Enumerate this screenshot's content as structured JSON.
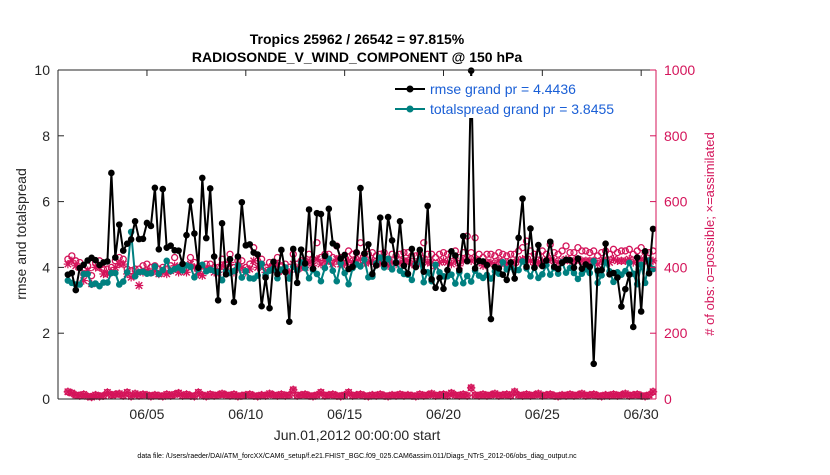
{
  "chart_data": {
    "type": "line",
    "title_line1": "Tropics 25962 / 26542 = 97.815%",
    "title_line2": "RADIOSONDE_V_WIND_COMPONENT @ 150 hPa",
    "xlabel": "Jun.01,2012 00:00:00 start",
    "ylabel_left": "rmse and totalspread",
    "ylabel_right": "# of obs: o=possible; ×=assimilated",
    "footnote": "data file: /Users/raeder/DAI/ATM_forcXX/CAM6_setup/f.e21.FHIST_BGC.f09_025.CAM6assim.011/Diags_NTrS_2012-06/obs_diag_output.nc",
    "xlim": [
      0.5,
      30.75
    ],
    "ylim_left": [
      0,
      10
    ],
    "ylim_right": [
      0,
      1000
    ],
    "x_ticks": [
      {
        "x": 5,
        "label": "06/05"
      },
      {
        "x": 10,
        "label": "06/10"
      },
      {
        "x": 15,
        "label": "06/15"
      },
      {
        "x": 20,
        "label": "06/20"
      },
      {
        "x": 25,
        "label": "06/25"
      },
      {
        "x": 30,
        "label": "06/30"
      }
    ],
    "y_ticks_left": [
      "0",
      "2",
      "4",
      "6",
      "8",
      "10"
    ],
    "y_ticks_right": [
      "0",
      "200",
      "400",
      "600",
      "800",
      "1000"
    ],
    "colors": {
      "rmse": "#000000",
      "spread": "#008080",
      "obs": "#d4145a",
      "axis": "#262626"
    },
    "legend": [
      {
        "label": "rmse grand pr = 4.4436",
        "series": "rmse"
      },
      {
        "label": "totalspread grand pr = 3.8455",
        "series": "spread"
      }
    ],
    "series": [
      {
        "name": "rmse",
        "axis": "left",
        "values": [
          3.78,
          3.83,
          3.31,
          3.98,
          4.08,
          4.21,
          4.29,
          4.22,
          4.07,
          4.15,
          4.18,
          6.87,
          4.3,
          5.3,
          4.51,
          4.72,
          4.85,
          5.4,
          4.86,
          4.87,
          5.35,
          5.26,
          6.42,
          4.55,
          6.38,
          4.6,
          4.66,
          4.52,
          4.51,
          4.11,
          4.98,
          6.02,
          5.03,
          3.99,
          6.72,
          4.89,
          6.4,
          4.33,
          3.0,
          5.34,
          3.79,
          4.25,
          2.95,
          4.33,
          5.98,
          4.67,
          4.7,
          4.45,
          4.39,
          2.82,
          3.69,
          2.76,
          4.17,
          3.8,
          4.53,
          3.86,
          2.35,
          4.56,
          3.53,
          4.54,
          4.12,
          5.76,
          3.96,
          5.65,
          5.62,
          4.35,
          5.78,
          4.73,
          4.65,
          4.27,
          4.38,
          3.95,
          4.02,
          4.45,
          6.41,
          4.42,
          4.7,
          3.8,
          4.06,
          5.51,
          4.1,
          5.53,
          4.82,
          4.14,
          5.4,
          4.05,
          3.81,
          4.56,
          4.01,
          4.53,
          3.87,
          5.87,
          3.64,
          3.38,
          3.68,
          3.35,
          3.92,
          4.49,
          4.36,
          3.92,
          4.95,
          4.19,
          9.98,
          3.97,
          4.2,
          4.18,
          4.07,
          2.43,
          4.01,
          3.97,
          3.78,
          3.62,
          4.15,
          3.66,
          4.9,
          6.09,
          4.02,
          5.18,
          3.99,
          4.68,
          4.04,
          4.21,
          4.78,
          4.02,
          3.95,
          4.14,
          4.23,
          4.22,
          3.99,
          4.27,
          3.96,
          4.09,
          4.02,
          1.07,
          3.9,
          3.92,
          4.72,
          3.79,
          3.83,
          3.69,
          2.81,
          3.34,
          3.78,
          2.19,
          4.3,
          2.66,
          4.49,
          3.82,
          5.17
        ]
      },
      {
        "name": "totalspread",
        "axis": "left",
        "values": [
          3.6,
          3.53,
          3.48,
          3.48,
          3.8,
          3.8,
          3.48,
          3.51,
          3.43,
          3.54,
          3.54,
          3.83,
          3.83,
          3.48,
          3.57,
          3.85,
          5.08,
          3.73,
          3.86,
          3.87,
          3.81,
          3.82,
          4.03,
          3.8,
          3.92,
          4.2,
          3.89,
          3.95,
          4.0,
          3.91,
          4.06,
          4.02,
          3.7,
          3.95,
          4.08,
          3.88,
          3.93,
          3.9,
          3.86,
          3.61,
          3.89,
          3.83,
          3.89,
          4.06,
          3.69,
          3.89,
          3.67,
          3.66,
          3.75,
          4.11,
          3.77,
          3.9,
          3.97,
          3.67,
          3.93,
          4.0,
          3.66,
          4.02,
          3.9,
          4.15,
          3.98,
          3.67,
          3.92,
          3.8,
          3.58,
          3.98,
          4.26,
          3.9,
          3.58,
          4.13,
          3.83,
          3.49,
          3.98,
          4.09,
          4.03,
          4.24,
          3.7,
          3.72,
          4.12,
          4.3,
          4.0,
          4.26,
          3.94,
          4.16,
          3.9,
          3.8,
          3.78,
          3.62,
          4.09,
          4.25,
          3.55,
          3.85,
          3.58,
          4.08,
          3.85,
          3.73,
          3.73,
          3.78,
          3.51,
          3.85,
          3.52,
          3.74,
          3.57,
          3.9,
          3.75,
          3.68,
          3.77,
          3.66,
          3.88,
          3.81,
          4.16,
          3.94,
          4.01,
          3.9,
          3.92,
          4.18,
          3.97,
          3.73,
          3.99,
          3.68,
          3.79,
          4.07,
          3.78,
          3.98,
          3.81,
          4.16,
          3.84,
          3.98,
          3.83,
          3.65,
          3.81,
          3.94,
          3.83,
          4.19,
          3.53,
          3.76,
          4.15,
          3.88,
          3.56,
          3.85,
          3.78,
          3.89,
          4.14,
          3.81,
          3.49,
          4.08,
          3.53,
          4.21,
          3.95
        ]
      },
      {
        "name": "nposs",
        "axis": "right",
        "values": [
          425,
          435,
          420,
          415,
          380,
          405,
          375,
          415,
          420,
          395,
          395,
          400,
          420,
          430,
          425,
          395,
          390,
          395,
          395,
          405,
          410,
          400,
          405,
          395,
          400,
          395,
          405,
          430,
          400,
          405,
          400,
          430,
          415,
          395,
          390,
          410,
          410,
          400,
          400,
          425,
          410,
          440,
          400,
          420,
          420,
          400,
          410,
          460,
          420,
          425,
          400,
          415,
          410,
          430,
          405,
          410,
          400,
          440,
          410,
          420,
          420,
          440,
          425,
          475,
          430,
          440,
          440,
          430,
          465,
          430,
          430,
          450,
          440,
          445,
          475,
          440,
          440,
          445,
          435,
          440,
          445,
          425,
          440,
          435,
          440,
          445,
          445,
          435,
          435,
          440,
          475,
          440,
          440,
          430,
          440,
          445,
          440,
          435,
          450,
          430,
          445,
          495,
          445,
          490,
          440,
          430,
          440,
          440,
          435,
          445,
          440,
          435,
          440,
          440,
          450,
          460,
          480,
          450,
          440,
          440,
          450,
          440,
          470,
          445,
          440,
          450,
          465,
          445,
          445,
          460,
          450,
          450,
          445,
          450,
          435,
          445,
          450,
          440,
          455,
          445,
          450,
          450,
          455,
          440,
          450,
          460,
          445,
          445,
          450
        ]
      },
      {
        "name": "nused",
        "axis": "right",
        "values": [
          410,
          420,
          405,
          400,
          360,
          390,
          350,
          400,
          400,
          380,
          380,
          385,
          400,
          410,
          410,
          380,
          370,
          380,
          345,
          385,
          390,
          385,
          390,
          380,
          385,
          380,
          390,
          405,
          385,
          390,
          385,
          410,
          400,
          380,
          375,
          395,
          395,
          385,
          385,
          405,
          395,
          415,
          385,
          400,
          400,
          385,
          395,
          420,
          400,
          405,
          385,
          400,
          395,
          410,
          390,
          395,
          385,
          410,
          395,
          400,
          400,
          415,
          405,
          425,
          410,
          420,
          420,
          410,
          425,
          410,
          410,
          420,
          415,
          420,
          425,
          415,
          415,
          420,
          410,
          415,
          420,
          405,
          415,
          410,
          415,
          420,
          420,
          410,
          410,
          415,
          425,
          415,
          415,
          405,
          415,
          420,
          415,
          410,
          420,
          405,
          420,
          425,
          420,
          425,
          415,
          405,
          415,
          415,
          410,
          420,
          415,
          410,
          415,
          415,
          420,
          425,
          425,
          420,
          415,
          415,
          420,
          415,
          425,
          420,
          415,
          420,
          425,
          420,
          420,
          425,
          420,
          420,
          420,
          420,
          410,
          420,
          420,
          415,
          425,
          420,
          420,
          420,
          425,
          415,
          420,
          425,
          420,
          420,
          420
        ]
      },
      {
        "name": "nposs_bottom",
        "axis": "right",
        "values": [
          22,
          18,
          12,
          10,
          14,
          8,
          6,
          12,
          8,
          10,
          20,
          12,
          14,
          16,
          10,
          20,
          8,
          16,
          10,
          14,
          12,
          8,
          12,
          10,
          8,
          14,
          10,
          14,
          18,
          10,
          14,
          10,
          8,
          20,
          12,
          8,
          14,
          10,
          12,
          16,
          12,
          10,
          14,
          8,
          10,
          12,
          14,
          10,
          8,
          12,
          10,
          16,
          12,
          10,
          14,
          10,
          12,
          28,
          10,
          12,
          14,
          10,
          8,
          12,
          20,
          10,
          12,
          14,
          10,
          8,
          12,
          20,
          10,
          12,
          14,
          10,
          8,
          12,
          10,
          14,
          10,
          8,
          12,
          10,
          14,
          10,
          12,
          10,
          8,
          14,
          10,
          12,
          16,
          10,
          12,
          14,
          10,
          18,
          12,
          10,
          14,
          10,
          34,
          12,
          10,
          14,
          10,
          12,
          16,
          10,
          12,
          14,
          10,
          22,
          12,
          10,
          14,
          10,
          12,
          16,
          10,
          12,
          14,
          10,
          8,
          12,
          10,
          14,
          10,
          12,
          16,
          10,
          12,
          14,
          10,
          8,
          12,
          10,
          14,
          10,
          12,
          16,
          10,
          12,
          14,
          10,
          8,
          12,
          22
        ]
      }
    ]
  }
}
